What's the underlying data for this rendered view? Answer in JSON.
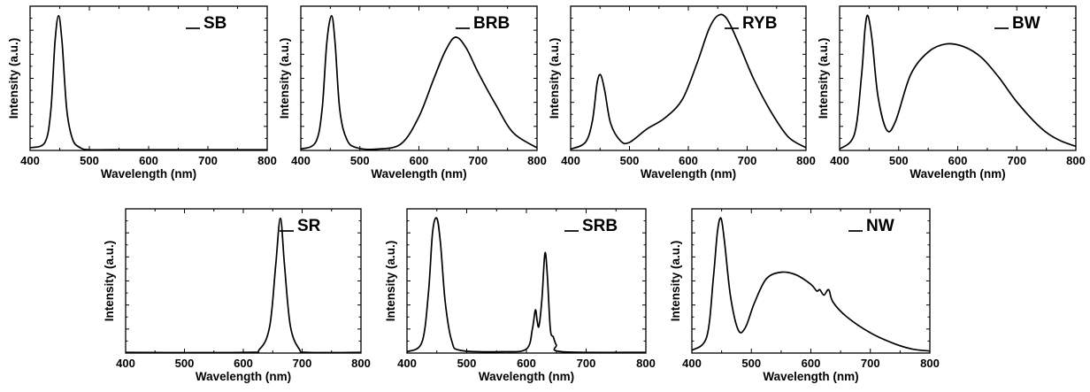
{
  "chart_data": [
    {
      "type": "line",
      "series": [
        {
          "name": "SB",
          "shape": [
            [
              400,
              0.02
            ],
            [
              425,
              0.06
            ],
            [
              435,
              0.3
            ],
            [
              442,
              0.8
            ],
            [
              448,
              1.0
            ],
            [
              454,
              0.8
            ],
            [
              462,
              0.3
            ],
            [
              472,
              0.08
            ],
            [
              485,
              0.02
            ],
            [
              500,
              0.005
            ],
            [
              550,
              0.005
            ],
            [
              800,
              0.005
            ]
          ]
        }
      ],
      "xlabel": "Wavelength (nm)",
      "ylabel": "Intensity (a.u.)",
      "xlim": [
        400,
        800
      ],
      "xticks": [
        400,
        500,
        600,
        700,
        800
      ],
      "ylim": [
        0,
        1.07
      ]
    },
    {
      "type": "line",
      "series": [
        {
          "name": "BRB",
          "shape": [
            [
              400,
              0.01
            ],
            [
              425,
              0.06
            ],
            [
              436,
              0.3
            ],
            [
              444,
              0.8
            ],
            [
              452,
              1.0
            ],
            [
              458,
              0.8
            ],
            [
              466,
              0.3
            ],
            [
              478,
              0.08
            ],
            [
              495,
              0.02
            ],
            [
              530,
              0.01
            ],
            [
              570,
              0.05
            ],
            [
              600,
              0.25
            ],
            [
              625,
              0.53
            ],
            [
              645,
              0.74
            ],
            [
              662,
              0.84
            ],
            [
              680,
              0.76
            ],
            [
              700,
              0.58
            ],
            [
              730,
              0.34
            ],
            [
              760,
              0.13
            ],
            [
              800,
              0.02
            ]
          ]
        }
      ],
      "xlabel": "Wavelength (nm)",
      "ylabel": "Intensity (a.u.)",
      "xlim": [
        400,
        800
      ],
      "xticks": [
        400,
        500,
        600,
        700,
        800
      ],
      "ylim": [
        0,
        1.07
      ]
    },
    {
      "type": "line",
      "series": [
        {
          "name": "RYB",
          "shape": [
            [
              400,
              0.01
            ],
            [
              425,
              0.06
            ],
            [
              437,
              0.22
            ],
            [
              445,
              0.5
            ],
            [
              451,
              0.56
            ],
            [
              458,
              0.44
            ],
            [
              468,
              0.2
            ],
            [
              485,
              0.07
            ],
            [
              500,
              0.06
            ],
            [
              530,
              0.16
            ],
            [
              560,
              0.24
            ],
            [
              590,
              0.38
            ],
            [
              615,
              0.65
            ],
            [
              635,
              0.9
            ],
            [
              650,
              1.0
            ],
            [
              665,
              0.98
            ],
            [
              685,
              0.8
            ],
            [
              710,
              0.54
            ],
            [
              740,
              0.29
            ],
            [
              770,
              0.1
            ],
            [
              800,
              0.02
            ]
          ]
        }
      ],
      "xlabel": "Wavelength (nm)",
      "ylabel": "Intensity (a.u.)",
      "xlim": [
        400,
        800
      ],
      "xticks": [
        400,
        500,
        600,
        700,
        800
      ],
      "ylim": [
        0,
        1.07
      ]
    },
    {
      "type": "line",
      "series": [
        {
          "name": "BW",
          "shape": [
            [
              400,
              0.01
            ],
            [
              425,
              0.12
            ],
            [
              437,
              0.55
            ],
            [
              443,
              0.9
            ],
            [
              448,
              1.0
            ],
            [
              455,
              0.82
            ],
            [
              465,
              0.4
            ],
            [
              480,
              0.15
            ],
            [
              495,
              0.22
            ],
            [
              520,
              0.56
            ],
            [
              550,
              0.73
            ],
            [
              580,
              0.79
            ],
            [
              610,
              0.77
            ],
            [
              640,
              0.69
            ],
            [
              670,
              0.54
            ],
            [
              700,
              0.36
            ],
            [
              740,
              0.17
            ],
            [
              770,
              0.08
            ],
            [
              800,
              0.03
            ]
          ]
        }
      ],
      "xlabel": "Wavelength (nm)",
      "ylabel": "Intensity (a.u.)",
      "xlim": [
        400,
        800
      ],
      "xticks": [
        400,
        500,
        600,
        700,
        800
      ],
      "ylim": [
        0,
        1.07
      ]
    },
    {
      "type": "line",
      "series": [
        {
          "name": "SR",
          "shape": [
            [
              400,
              0.005
            ],
            [
              600,
              0.005
            ],
            [
              628,
              0.03
            ],
            [
              645,
              0.2
            ],
            [
              655,
              0.65
            ],
            [
              663,
              1.0
            ],
            [
              670,
              0.65
            ],
            [
              680,
              0.2
            ],
            [
              695,
              0.03
            ],
            [
              710,
              0.005
            ],
            [
              800,
              0.005
            ]
          ]
        }
      ],
      "xlabel": "Wavelength (nm)",
      "ylabel": "Intensity (a.u.)",
      "xlim": [
        400,
        800
      ],
      "xticks": [
        400,
        500,
        600,
        700,
        800
      ],
      "ylim": [
        0,
        1.07
      ]
    },
    {
      "type": "line",
      "series": [
        {
          "name": "SRB",
          "shape": [
            [
              400,
              0.01
            ],
            [
              425,
              0.08
            ],
            [
              436,
              0.45
            ],
            [
              443,
              0.9
            ],
            [
              450,
              1.0
            ],
            [
              456,
              0.82
            ],
            [
              464,
              0.38
            ],
            [
              475,
              0.09
            ],
            [
              490,
              0.02
            ],
            [
              560,
              0.01
            ],
            [
              600,
              0.03
            ],
            [
              610,
              0.18
            ],
            [
              615,
              0.32
            ],
            [
              618,
              0.24
            ],
            [
              621,
              0.2
            ],
            [
              626,
              0.4
            ],
            [
              631,
              0.74
            ],
            [
              635,
              0.58
            ],
            [
              640,
              0.18
            ],
            [
              645,
              0.12
            ],
            [
              650,
              0.06
            ],
            [
              660,
              0.01
            ],
            [
              800,
              0.005
            ]
          ]
        }
      ],
      "xlabel": "Wavelength (nm)",
      "ylabel": "Intensity (a.u.)",
      "xlim": [
        400,
        800
      ],
      "xticks": [
        400,
        500,
        600,
        700,
        800
      ],
      "ylim": [
        0,
        1.07
      ]
    },
    {
      "type": "line",
      "series": [
        {
          "name": "NW",
          "shape": [
            [
              400,
              0.02
            ],
            [
              425,
              0.12
            ],
            [
              436,
              0.55
            ],
            [
              443,
              0.9
            ],
            [
              449,
              1.0
            ],
            [
              455,
              0.82
            ],
            [
              465,
              0.42
            ],
            [
              478,
              0.17
            ],
            [
              490,
              0.19
            ],
            [
              505,
              0.37
            ],
            [
              525,
              0.55
            ],
            [
              550,
              0.6
            ],
            [
              575,
              0.58
            ],
            [
              600,
              0.51
            ],
            [
              610,
              0.46
            ],
            [
              615,
              0.47
            ],
            [
              622,
              0.43
            ],
            [
              630,
              0.47
            ],
            [
              637,
              0.38
            ],
            [
              660,
              0.27
            ],
            [
              700,
              0.15
            ],
            [
              740,
              0.07
            ],
            [
              770,
              0.03
            ],
            [
              800,
              0.015
            ]
          ]
        }
      ],
      "xlabel": "Wavelength (nm)",
      "ylabel": "Intensity (a.u.)",
      "xlim": [
        400,
        800
      ],
      "xticks": [
        400,
        500,
        600,
        700,
        800
      ],
      "ylim": [
        0,
        1.07
      ]
    }
  ]
}
